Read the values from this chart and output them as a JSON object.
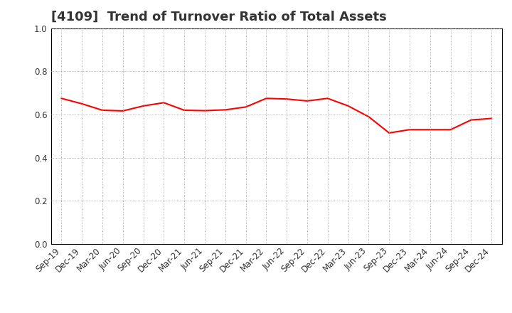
{
  "title": "[4109]  Trend of Turnover Ratio of Total Assets",
  "x_labels": [
    "Sep-19",
    "Dec-19",
    "Mar-20",
    "Jun-20",
    "Sep-20",
    "Dec-20",
    "Mar-21",
    "Jun-21",
    "Sep-21",
    "Dec-21",
    "Mar-22",
    "Jun-22",
    "Sep-22",
    "Dec-22",
    "Mar-23",
    "Jun-23",
    "Sep-23",
    "Dec-23",
    "Mar-24",
    "Jun-24",
    "Sep-24",
    "Dec-24"
  ],
  "values": [
    0.675,
    0.65,
    0.62,
    0.617,
    0.64,
    0.655,
    0.62,
    0.618,
    0.622,
    0.635,
    0.675,
    0.672,
    0.663,
    0.675,
    0.64,
    0.59,
    0.515,
    0.53,
    0.53,
    0.53,
    0.575,
    0.582
  ],
  "line_color": "#FF0000",
  "line_width": 1.5,
  "ylim": [
    0.0,
    1.0
  ],
  "yticks": [
    0.0,
    0.2,
    0.4,
    0.6,
    0.8,
    1.0
  ],
  "background_color": "#FFFFFF",
  "grid_color": "#999999",
  "title_fontsize": 13,
  "tick_fontsize": 8.5,
  "title_color": "#333333"
}
